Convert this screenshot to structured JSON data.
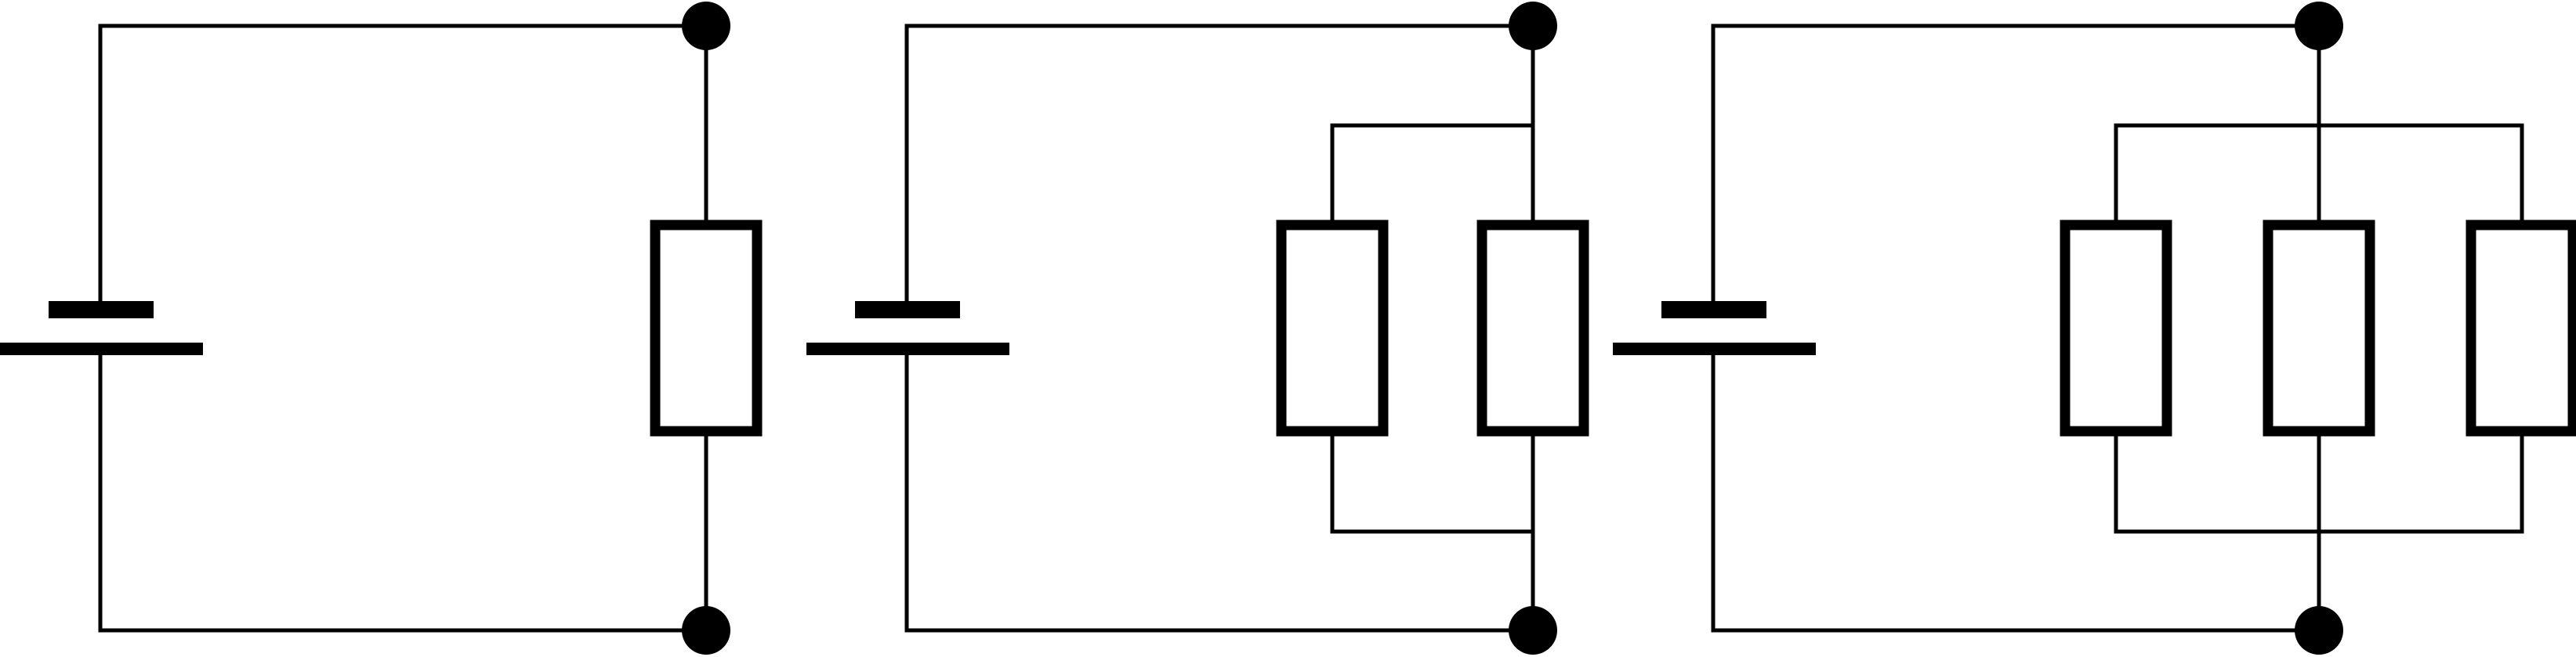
{
  "colors": {
    "stroke": "#000000",
    "background": "#ffffff"
  },
  "circuits": [
    {
      "id": "circuit-1",
      "resistors": 1
    },
    {
      "id": "circuit-2",
      "resistors": 2
    },
    {
      "id": "circuit-3",
      "resistors": 3
    }
  ]
}
